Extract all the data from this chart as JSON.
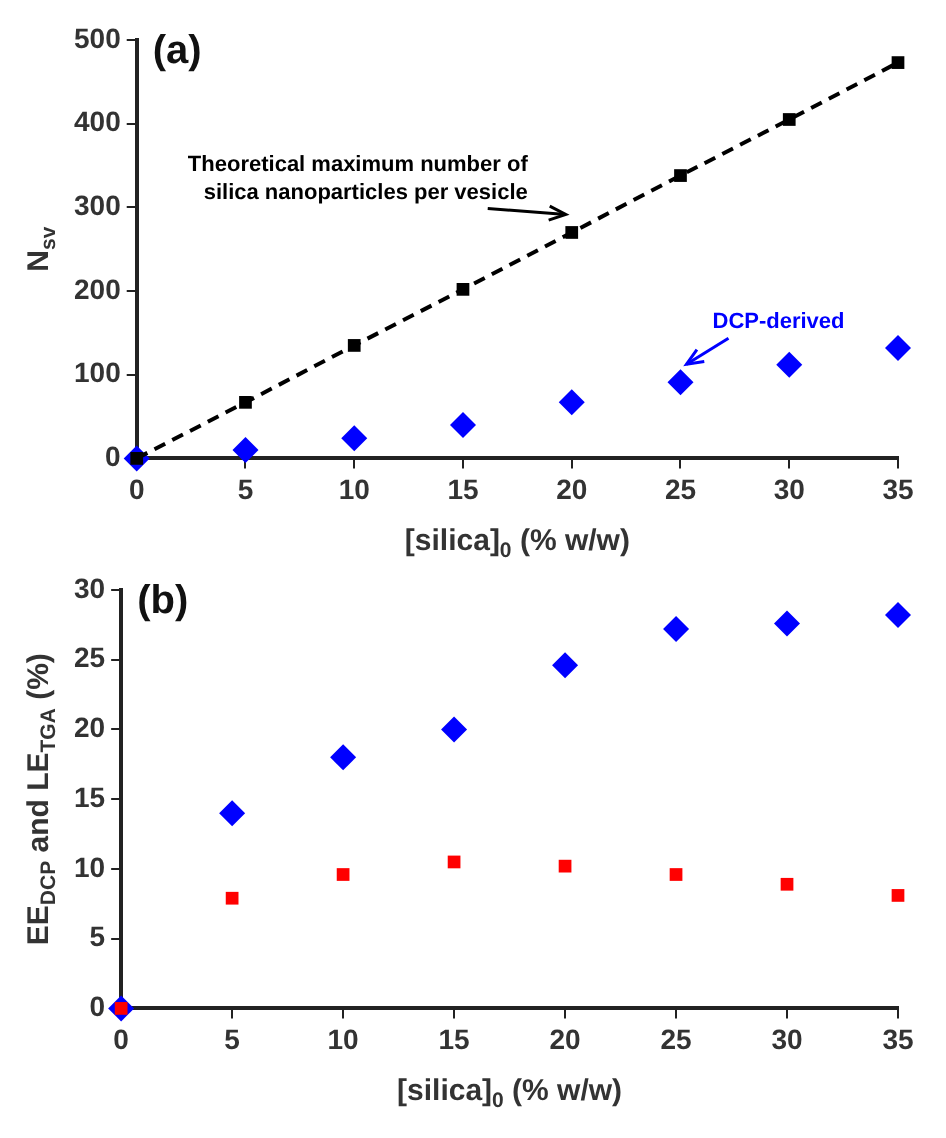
{
  "chart_data": [
    {
      "type": "scatter",
      "xlabel": "[silica]$_{0}$ (% w/w)",
      "ylabel": "N$_{sv}$",
      "x": [
        0,
        5,
        10,
        15,
        20,
        25,
        30,
        35
      ],
      "xlim": [
        0,
        35
      ],
      "xticks": [
        0,
        5,
        10,
        15,
        20,
        25,
        30,
        35
      ],
      "ylim": [
        0,
        500
      ],
      "yticks": [
        0,
        100,
        200,
        300,
        400,
        500
      ],
      "grid": false,
      "legend": false,
      "series": [
        {
          "type": "line",
          "color": "#000000",
          "marker": "square",
          "line_style": "dashed",
          "values": [
            0,
            67,
            135,
            202,
            270,
            338,
            405,
            473
          ]
        },
        {
          "type": "scatter",
          "color": "#0000ff",
          "marker": "diamond",
          "values": [
            0,
            10,
            24,
            40,
            67,
            91,
            112,
            132
          ]
        }
      ],
      "annotations": [
        "(a)",
        {
          "text": "Theoretical maximum number of silica nanoparticles per vesicle",
          "x": 20,
          "y": 270
        },
        {
          "text": "DCP-derived",
          "x": 25,
          "y": 91
        }
      ]
    },
    {
      "type": "scatter",
      "xlabel": "[silica]$_{0}$ (% w/w)",
      "ylabel": "EE$_{DCP}$ and LE$_{TGA}$ (%)",
      "x": [
        0,
        5,
        10,
        15,
        20,
        25,
        30,
        35
      ],
      "xlim": [
        0,
        35
      ],
      "xticks": [
        0,
        5,
        10,
        15,
        20,
        25,
        30,
        35
      ],
      "ylim": [
        0,
        30
      ],
      "yticks": [
        0,
        5,
        10,
        15,
        20,
        25,
        30
      ],
      "grid": false,
      "legend": false,
      "series": [
        {
          "type": "scatter",
          "color": "#ff0000",
          "marker": "square",
          "values": [
            0,
            7.9,
            9.6,
            10.5,
            10.2,
            9.6,
            8.9,
            8.1
          ]
        },
        {
          "type": "scatter",
          "color": "#0000ff",
          "marker": "diamond",
          "values": [
            0,
            14,
            18,
            20,
            24.6,
            27.2,
            27.6,
            28.2
          ]
        }
      ],
      "annotations": [
        "(b)"
      ]
    }
  ]
}
